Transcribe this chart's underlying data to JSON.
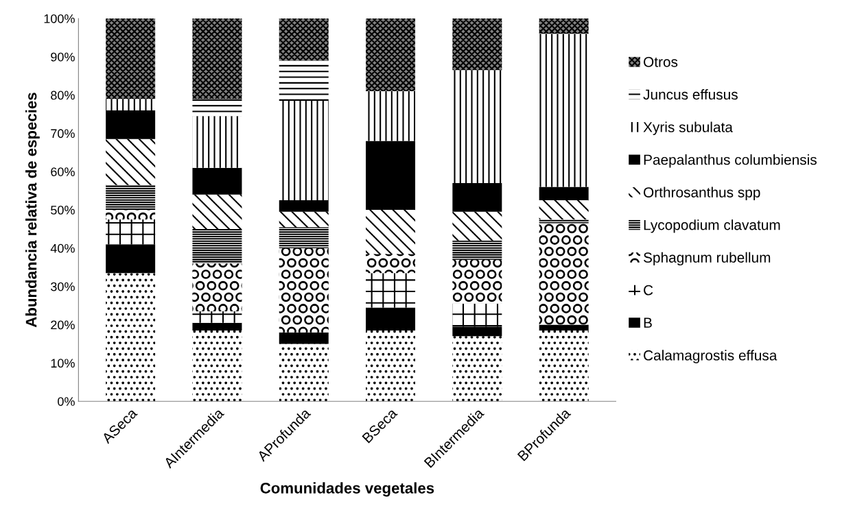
{
  "chart_data": {
    "type": "bar",
    "stacked": true,
    "xlabel": "Comunidades vegetales",
    "ylabel": "Abundancia relativa de especies",
    "categories": [
      "ASeca",
      "AIntermedia",
      "AProfunda",
      "BSeca",
      "BIntermedia",
      "BProfunda"
    ],
    "series": [
      {
        "name": "Calamagrostis effusa",
        "color": "#ffffff",
        "values": [
          33.5,
          18.5,
          15,
          18.5,
          17,
          18.5
        ]
      },
      {
        "name": "B",
        "color": "#000000",
        "values": [
          7.5,
          2,
          3,
          6,
          2.5,
          1.5
        ]
      },
      {
        "name": "C",
        "color": "#ffffff",
        "values": [
          6.5,
          3,
          0,
          9,
          6,
          0
        ]
      },
      {
        "name": "Sphagnum rubellum",
        "color": "#ffffff",
        "values": [
          2.5,
          12.5,
          22,
          5,
          11.5,
          26.5
        ]
      },
      {
        "name": "Lycopodium clavatum",
        "color": "#ffffff",
        "values": [
          6.5,
          9,
          5.5,
          0,
          5,
          1
        ]
      },
      {
        "name": "Orthrosanthus spp",
        "color": "#ffffff",
        "values": [
          12,
          9,
          4,
          11.5,
          7.5,
          5
        ]
      },
      {
        "name": "Paepalanthus columbiensis",
        "color": "#000000",
        "values": [
          7.5,
          7,
          3,
          18,
          7.5,
          3.5
        ]
      },
      {
        "name": "Xyris subulata",
        "color": "#ffffff",
        "values": [
          3,
          13.5,
          26,
          13,
          29.5,
          40
        ]
      },
      {
        "name": "Juncus effusus",
        "color": "#ffffff",
        "values": [
          0,
          4.5,
          10.5,
          0,
          0,
          0
        ]
      },
      {
        "name": "Otros",
        "color": "#808080",
        "values": [
          21,
          21,
          11,
          19,
          13.5,
          4
        ]
      }
    ],
    "ylim": [
      0,
      100
    ],
    "yticks": [
      {
        "value": 0,
        "label": "0%"
      },
      {
        "value": 10,
        "label": "10%"
      },
      {
        "value": 20,
        "label": "20%"
      },
      {
        "value": 30,
        "label": "30%"
      },
      {
        "value": 40,
        "label": "40%"
      },
      {
        "value": 50,
        "label": "50%"
      },
      {
        "value": 60,
        "label": "60%"
      },
      {
        "value": 70,
        "label": "70%"
      },
      {
        "value": 80,
        "label": "80%"
      },
      {
        "value": 90,
        "label": "90%"
      },
      {
        "value": 100,
        "label": "100%"
      }
    ],
    "grid": false,
    "legend": "right"
  }
}
